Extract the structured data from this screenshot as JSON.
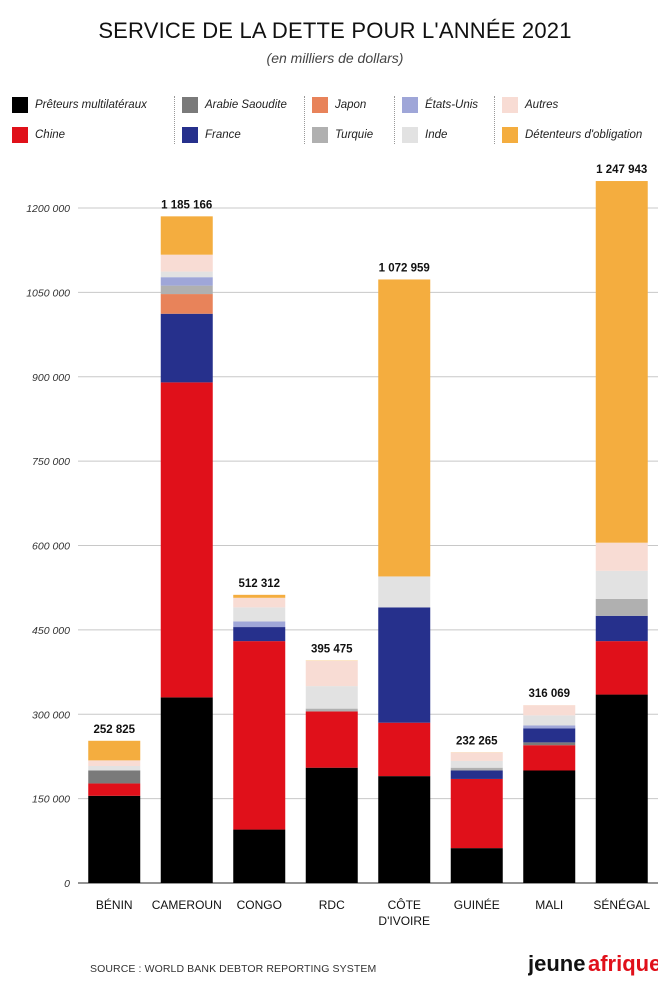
{
  "header": {
    "title": "SERVICE DE LA DETTE POUR L'ANNÉE 2021",
    "subtitle": "(en milliers de dollars)"
  },
  "legend": [
    {
      "name": "Prêteurs multilatéraux",
      "color": "#000000"
    },
    {
      "name": "Chine",
      "color": "#e0101a"
    },
    {
      "name": "Arabie Saoudite",
      "color": "#7a7a7a"
    },
    {
      "name": "France",
      "color": "#26308c"
    },
    {
      "name": "Japon",
      "color": "#e8835a"
    },
    {
      "name": "Turquie",
      "color": "#b0b0b0"
    },
    {
      "name": "États-Unis",
      "color": "#9fa6d8"
    },
    {
      "name": "Inde",
      "color": "#e2e2e2"
    },
    {
      "name": "Autres",
      "color": "#f8dcd4"
    },
    {
      "name": "Détenteurs d'obligation",
      "color": "#f4ad3f"
    }
  ],
  "chart_data": {
    "type": "bar",
    "stacked": true,
    "title": "SERVICE DE LA DETTE POUR L'ANNÉE 2021",
    "subtitle": "(en milliers de dollars)",
    "xlabel": "",
    "ylabel": "",
    "ylim": [
      0,
      1200000
    ],
    "yticks": [
      "0",
      "150 000",
      "300 000",
      "450 000",
      "600 000",
      "750 000",
      "900 000",
      "1050 000",
      "1200 000"
    ],
    "ytick_values": [
      0,
      150000,
      300000,
      450000,
      600000,
      750000,
      900000,
      1050000,
      1200000
    ],
    "grid": true,
    "categories": [
      "BÉNIN",
      "CAMEROUN",
      "CONGO",
      "RDC",
      "CÔTE\nD'IVOIRE",
      "GUINÉE",
      "MALI",
      "SÉNÉGAL"
    ],
    "totals": [
      "252 825",
      "1 185 166",
      "512 312",
      "395 475",
      "1 072 959",
      "232 265",
      "316 069",
      "1 247 943"
    ],
    "total_values": [
      252825,
      1185166,
      512312,
      395475,
      1072959,
      232265,
      316069,
      1247943
    ],
    "series": [
      {
        "name": "Prêteurs multilatéraux",
        "values": [
          155000,
          330000,
          95000,
          205000,
          190000,
          62000,
          200000,
          335000
        ]
      },
      {
        "name": "Chine",
        "values": [
          22000,
          560000,
          335000,
          100000,
          95000,
          123000,
          45000,
          95000
        ]
      },
      {
        "name": "Arabie Saoudite",
        "values": [
          23000,
          0,
          0,
          0,
          0,
          0,
          5000,
          0
        ]
      },
      {
        "name": "France",
        "values": [
          0,
          122000,
          25000,
          0,
          205000,
          15000,
          25000,
          45000
        ]
      },
      {
        "name": "Japon",
        "values": [
          0,
          35000,
          0,
          0,
          0,
          0,
          0,
          0
        ]
      },
      {
        "name": "Turquie",
        "values": [
          0,
          15000,
          0,
          5000,
          0,
          5000,
          0,
          30000
        ]
      },
      {
        "name": "États-Unis",
        "values": [
          0,
          15000,
          10000,
          0,
          0,
          0,
          5000,
          0
        ]
      },
      {
        "name": "Inde",
        "values": [
          8000,
          10000,
          25000,
          40000,
          55000,
          12000,
          18000,
          50000
        ]
      },
      {
        "name": "Autres",
        "values": [
          10000,
          30000,
          17000,
          45000,
          0,
          15000,
          18000,
          50000
        ]
      },
      {
        "name": "Détenteurs d'obligation",
        "values": [
          34825,
          68166,
          5312,
          475,
          527959,
          265,
          69,
          642943
        ]
      }
    ]
  },
  "footer": {
    "source": "SOURCE : WORLD BANK DEBTOR REPORTING SYSTEM",
    "logo_part1": "jeune",
    "logo_part2": "afrique"
  }
}
